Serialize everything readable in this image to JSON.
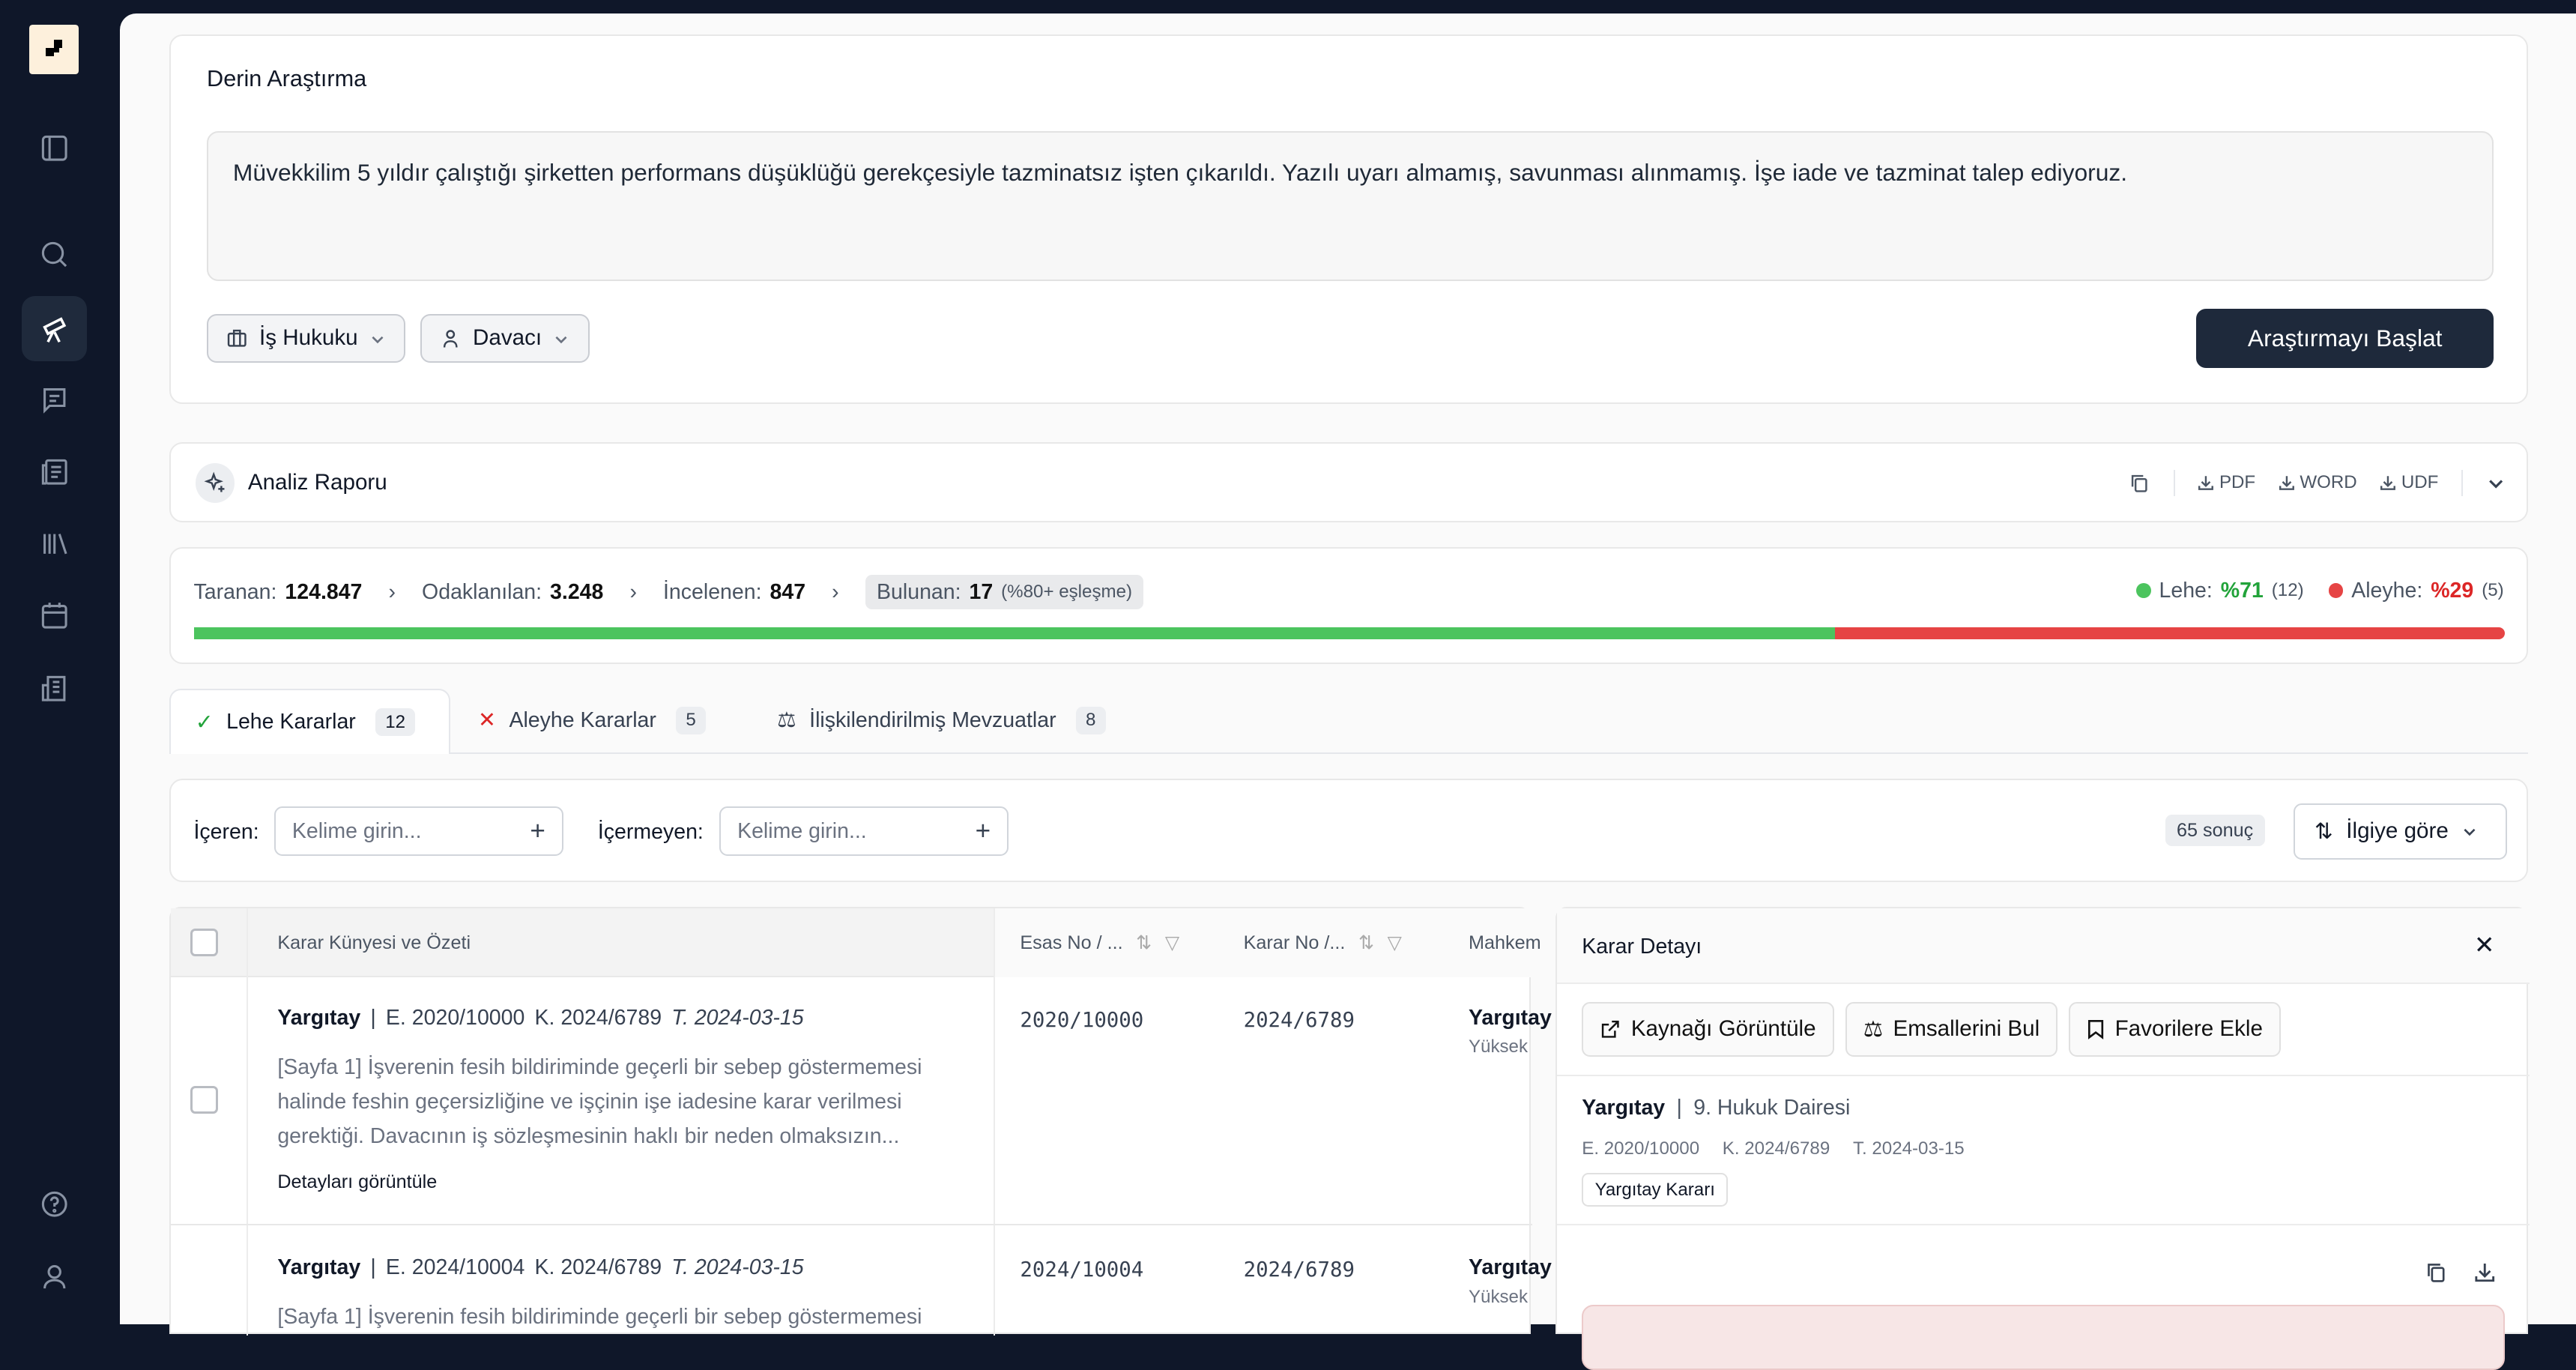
{
  "sidebar": {
    "logo": "logo",
    "items": [
      "sidebar-toggle",
      "search",
      "deep-research",
      "chat",
      "documents",
      "library",
      "calendar",
      "reports"
    ],
    "active": "deep-research",
    "bottom": [
      "help",
      "profile"
    ]
  },
  "research": {
    "title": "Derin Araştırma",
    "query": "Müvekkilim 5 yıldır çalıştığı şirketten performans düşüklüğü gerekçesiyle tazminatsız işten çıkarıldı. Yazılı uyarı almamış, savunması alınmamış. İşe iade ve tazminat talep ediyoruz.",
    "area": "İş Hukuku",
    "role": "Davacı",
    "start_button": "Araştırmayı Başlat"
  },
  "report": {
    "title": "Analiz Raporu",
    "pdf": "PDF",
    "word": "WORD",
    "udf": "UDF"
  },
  "stats": {
    "scanned_label": "Taranan:",
    "scanned": "124.847",
    "focused_label": "Odaklanılan:",
    "focused": "3.248",
    "reviewed_label": "İncelenen:",
    "reviewed": "847",
    "found_label": "Bulunan:",
    "found": "17",
    "found_note": "(%80+ eşleşme)",
    "favor_label": "Lehe:",
    "favor_pct": "%71",
    "favor_count": "(12)",
    "against_label": "Aleyhe:",
    "against_pct": "%29",
    "against_count": "(5)",
    "favor_fraction": 0.71,
    "favor_color": "#4cc45e",
    "against_color": "#e64444"
  },
  "tabs": [
    {
      "label": "Lehe Kararlar",
      "count": "12"
    },
    {
      "label": "Aleyhe Kararlar",
      "count": "5"
    },
    {
      "label": "İlişkilendirilmiş Mevzuatlar",
      "count": "8"
    }
  ],
  "filters": {
    "include_label": "İçeren:",
    "include_placeholder": "Kelime girin...",
    "exclude_label": "İçermeyen:",
    "exclude_placeholder": "Kelime girin...",
    "result_count": "65 sonuç",
    "sort": "İlgiye göre"
  },
  "table": {
    "headers": [
      "Karar Künyesi ve Özeti",
      "Esas No / ...",
      "Karar No /...",
      "Mahkem"
    ],
    "rows": [
      {
        "court": "Yargıtay",
        "esas": "E. 2020/10000",
        "karar": "K. 2024/6789",
        "date": "T. 2024-03-15",
        "summary": "[Sayfa 1] İşverenin fesih bildiriminde geçerli bir sebep göstermemesi halinde feshin geçersizliğine ve işçinin işe iadesine karar verilmesi gerektiği. Davacının iş sözleşmesinin haklı bir neden olmaksızın...",
        "details": "Detayları görüntüle",
        "esas_no": "2020/10000",
        "karar_no": "2024/6789",
        "court_col": "Yargıtay",
        "court_sub": "Yüksek"
      },
      {
        "court": "Yargıtay",
        "esas": "E. 2024/10004",
        "karar": "K. 2024/6789",
        "date": "T. 2024-03-15",
        "summary": "[Sayfa 1] İşverenin fesih bildiriminde geçerli bir sebep göstermemesi",
        "esas_no": "2024/10004",
        "karar_no": "2024/6789",
        "court_col": "Yargıtay",
        "court_sub": "Yüksek"
      }
    ]
  },
  "detail": {
    "title": "Karar Detayı",
    "view_source": "Kaynağı Görüntüle",
    "find_precedents": "Emsallerini Bul",
    "add_favorite": "Favorilere Ekle",
    "court": "Yargıtay",
    "chamber": "9. Hukuk Dairesi",
    "esas": "E. 2020/10000",
    "karar": "K. 2024/6789",
    "date": "T. 2024-03-15",
    "tag": "Yargıtay Kararı"
  }
}
